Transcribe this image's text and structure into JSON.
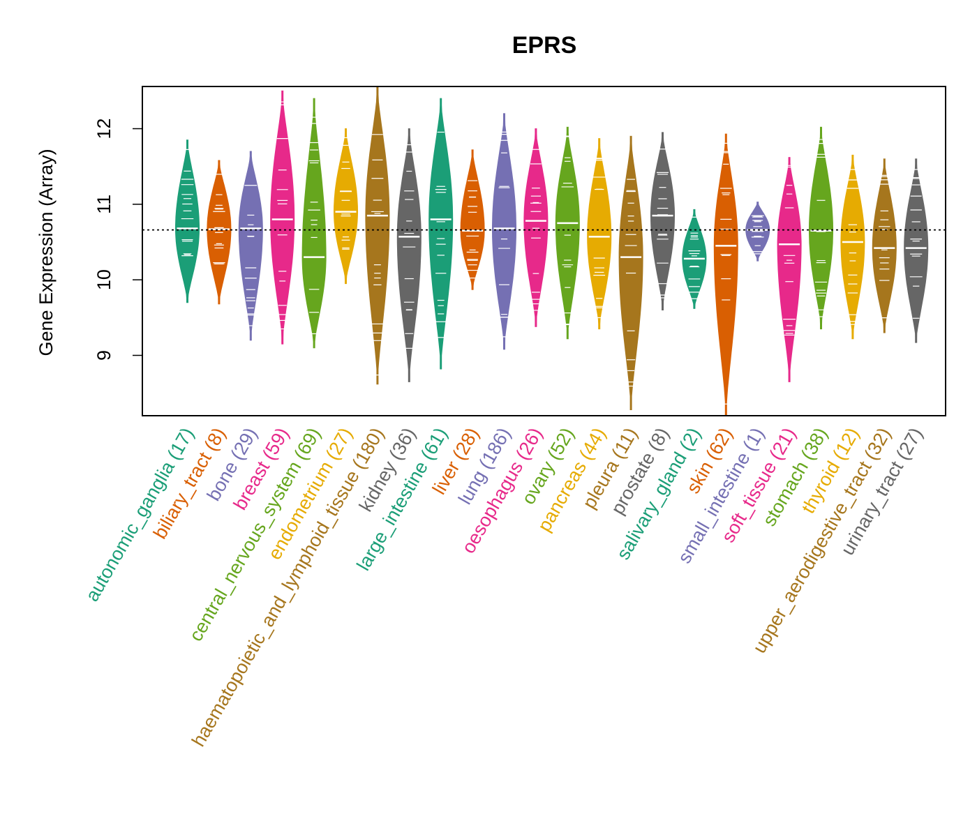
{
  "chart_data": {
    "type": "violin",
    "title": "EPRS",
    "ylabel": "Gene Expression (Array)",
    "xlabel": "",
    "ylim": [
      8.2,
      12.55
    ],
    "yticks": [
      9,
      10,
      11,
      12
    ],
    "reference_line": 10.66,
    "categories": [
      {
        "label": "autonomic_ganglia (17)",
        "color": "#1B9E77",
        "median": 10.68,
        "min": 9.7,
        "max": 11.85
      },
      {
        "label": "biliary_tract (8)",
        "color": "#D95F02",
        "median": 10.67,
        "min": 9.68,
        "max": 11.58
      },
      {
        "label": "bone (29)",
        "color": "#7570B3",
        "median": 10.68,
        "min": 9.2,
        "max": 11.7
      },
      {
        "label": "breast (59)",
        "color": "#E7298A",
        "median": 10.8,
        "min": 9.15,
        "max": 12.5
      },
      {
        "label": "central_nervous_system (69)",
        "color": "#66A61E",
        "median": 10.3,
        "min": 9.1,
        "max": 12.4
      },
      {
        "label": "endometrium (27)",
        "color": "#E6AB02",
        "median": 10.9,
        "min": 9.95,
        "max": 12.0
      },
      {
        "label": "haematopoietic_and_lymphoid_tissue (180)",
        "color": "#A6761D",
        "median": 10.85,
        "min": 8.62,
        "max": 12.55
      },
      {
        "label": "kidney (36)",
        "color": "#666666",
        "median": 10.57,
        "min": 8.65,
        "max": 12.0
      },
      {
        "label": "large_intestine (61)",
        "color": "#1B9E77",
        "median": 10.8,
        "min": 8.82,
        "max": 12.4
      },
      {
        "label": "liver (28)",
        "color": "#D95F02",
        "median": 10.65,
        "min": 9.87,
        "max": 11.72
      },
      {
        "label": "lung (186)",
        "color": "#7570B3",
        "median": 10.68,
        "min": 9.08,
        "max": 12.2
      },
      {
        "label": "oesophagus (26)",
        "color": "#E7298A",
        "median": 10.78,
        "min": 9.38,
        "max": 12.0
      },
      {
        "label": "ovary (52)",
        "color": "#66A61E",
        "median": 10.75,
        "min": 9.22,
        "max": 12.02
      },
      {
        "label": "pancreas (44)",
        "color": "#E6AB02",
        "median": 10.57,
        "min": 9.35,
        "max": 11.87
      },
      {
        "label": "pleura (11)",
        "color": "#A6761D",
        "median": 10.3,
        "min": 8.28,
        "max": 11.9
      },
      {
        "label": "prostate (8)",
        "color": "#666666",
        "median": 10.85,
        "min": 9.6,
        "max": 11.95
      },
      {
        "label": "salivary_gland (2)",
        "color": "#1B9E77",
        "median": 10.28,
        "min": 9.62,
        "max": 10.93
      },
      {
        "label": "skin (62)",
        "color": "#D95F02",
        "median": 10.45,
        "min": 8.2,
        "max": 11.93
      },
      {
        "label": "small_intestine (1)",
        "color": "#7570B3",
        "median": 10.66,
        "min": 10.25,
        "max": 11.03
      },
      {
        "label": "soft_tissue (21)",
        "color": "#E7298A",
        "median": 10.47,
        "min": 8.65,
        "max": 11.62
      },
      {
        "label": "stomach (38)",
        "color": "#66A61E",
        "median": 10.65,
        "min": 9.35,
        "max": 12.02
      },
      {
        "label": "thyroid (12)",
        "color": "#E6AB02",
        "median": 10.5,
        "min": 9.22,
        "max": 11.65
      },
      {
        "label": "upper_aerodigestive_tract (32)",
        "color": "#A6761D",
        "median": 10.42,
        "min": 9.3,
        "max": 11.6
      },
      {
        "label": "urinary_tract (27)",
        "color": "#666666",
        "median": 10.42,
        "min": 9.17,
        "max": 11.6
      }
    ]
  }
}
